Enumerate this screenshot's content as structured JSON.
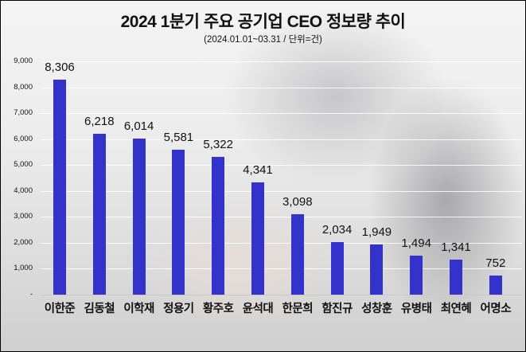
{
  "chart_data": {
    "type": "bar",
    "title": "2024 1분기 주요 공기업 CEO 정보량 추이",
    "subtitle": "(2024.01.01~03.31  / 단위=건)",
    "xlabel": "",
    "ylabel": "",
    "ylim": [
      0,
      9000
    ],
    "grid": true,
    "legend": null,
    "bar_color": "#3333cc",
    "y_ticks": [
      "-",
      "1,000",
      "2,000",
      "3,000",
      "4,000",
      "5,000",
      "6,000",
      "7,000",
      "8,000",
      "9,000"
    ],
    "categories": [
      "이한준",
      "김동철",
      "이학재",
      "정용기",
      "황주호",
      "윤석대",
      "한문희",
      "함진규",
      "성창훈",
      "유병태",
      "최연혜",
      "어명소"
    ],
    "values": [
      8306,
      6218,
      6014,
      5581,
      5322,
      4341,
      3098,
      2034,
      1949,
      1494,
      1341,
      752
    ],
    "value_labels": [
      "8,306",
      "6,218",
      "6,014",
      "5,581",
      "5,322",
      "4,341",
      "3,098",
      "2,034",
      "1,949",
      "1,494",
      "1,341",
      "752"
    ]
  }
}
